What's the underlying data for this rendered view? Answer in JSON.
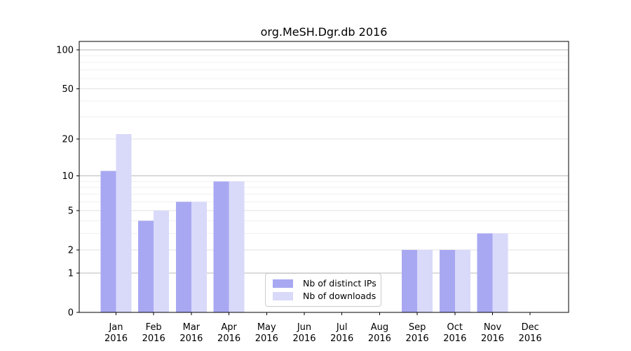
{
  "chart_data": {
    "type": "bar",
    "title": "org.MeSH.Dgr.db 2016",
    "categories": [
      "Jan 2016",
      "Feb 2016",
      "Mar 2016",
      "Apr 2016",
      "May 2016",
      "Jun 2016",
      "Jul 2016",
      "Aug 2016",
      "Sep 2016",
      "Oct 2016",
      "Nov 2016",
      "Dec 2016"
    ],
    "series": [
      {
        "name": "Nb of distinct IPs",
        "color": "#a8a8f2",
        "values": [
          11,
          4,
          6,
          9,
          0,
          0,
          0,
          0,
          2,
          2,
          3,
          0
        ]
      },
      {
        "name": "Nb of downloads",
        "color": "#d9d9fa",
        "values": [
          22,
          5,
          6,
          9,
          0,
          0,
          0,
          0,
          2,
          2,
          3,
          0
        ]
      }
    ],
    "xlabel": "",
    "ylabel": "",
    "y_scale": "log1p",
    "y_ticks": [
      0,
      1,
      2,
      5,
      10,
      20,
      50,
      100
    ],
    "y_minor_gridlines": [
      3,
      4,
      6,
      7,
      8,
      9,
      30,
      40,
      60,
      70,
      80,
      90
    ],
    "ylim": [
      0,
      116
    ],
    "grid": "horizontal",
    "legend_position": "inside lower-center"
  },
  "colors": {
    "decade_gridline": "#b9b9b9",
    "major_gridline": "#e1e1e1",
    "minor_gridline": "#f0f0f0",
    "axis": "#000000",
    "legend_border": "#cccccc",
    "background": "#ffffff"
  }
}
